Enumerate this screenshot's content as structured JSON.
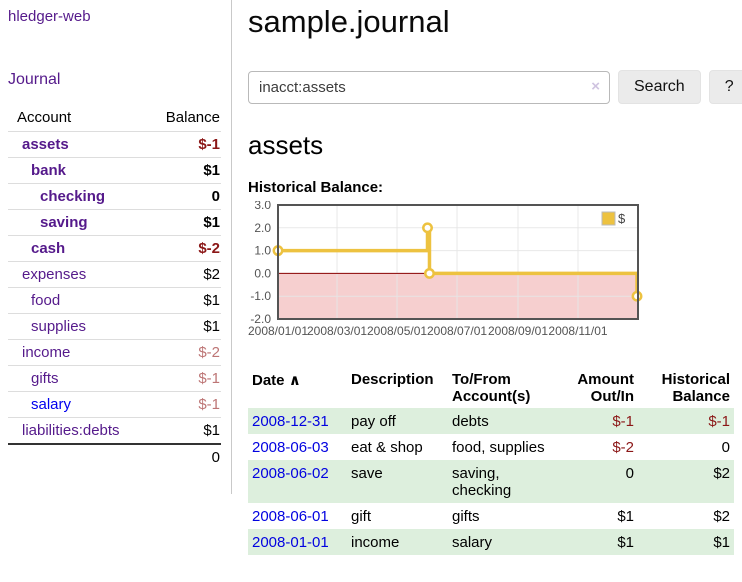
{
  "sidebar": {
    "app_title": "hledger-web",
    "journal_link": "Journal",
    "table": {
      "account_header": "Account",
      "balance_header": "Balance",
      "accounts": [
        {
          "name": "assets",
          "level": 1,
          "name_class": "bold",
          "balance": "$-1",
          "balance_class": "bold neg-strong"
        },
        {
          "name": "bank",
          "level": 2,
          "name_class": "bold",
          "balance": "$1",
          "balance_class": "bold"
        },
        {
          "name": "checking",
          "level": 3,
          "name_class": "bold",
          "balance": "0",
          "balance_class": "bold"
        },
        {
          "name": "saving",
          "level": 3,
          "name_class": "bold",
          "balance": "$1",
          "balance_class": "bold"
        },
        {
          "name": "cash",
          "level": 2,
          "name_class": "bold",
          "balance": "$-2",
          "balance_class": "bold neg-strong"
        },
        {
          "name": "expenses",
          "level": 1,
          "name_class": "",
          "balance": "$2",
          "balance_class": ""
        },
        {
          "name": "food",
          "level": 2,
          "name_class": "",
          "balance": "$1",
          "balance_class": ""
        },
        {
          "name": "supplies",
          "level": 2,
          "name_class": "",
          "balance": "$1",
          "balance_class": ""
        },
        {
          "name": "income",
          "level": 1,
          "name_class": "",
          "balance": "$-2",
          "balance_class": "neg-soft"
        },
        {
          "name": "gifts",
          "level": 2,
          "name_class": "",
          "balance": "$-1",
          "balance_class": "neg-soft"
        },
        {
          "name": "salary",
          "level": 2,
          "name_class": "unvisited",
          "balance": "$-1",
          "balance_class": "neg-soft"
        },
        {
          "name": "liabilities:debts",
          "level": 1,
          "name_class": "",
          "balance": "$1",
          "balance_class": ""
        }
      ],
      "total": "0"
    }
  },
  "main": {
    "title": "sample.journal",
    "search": {
      "value": "inacct:assets",
      "clear_icon": "×",
      "button_label": "Search",
      "help_label": "?"
    },
    "account_heading": "assets",
    "register": {
      "headers": {
        "date": "Date",
        "description": "Description",
        "accounts": "To/From Account(s)",
        "amount": "Amount Out/In",
        "balance": "Historical Balance"
      },
      "sort_indicator": "∧",
      "rows": [
        {
          "date": "2008-12-31",
          "description": "pay off",
          "accounts": "debts",
          "amount": "$-1",
          "amount_class": "negative",
          "balance": "$-1",
          "balance_class": "negative"
        },
        {
          "date": "2008-06-03",
          "description": "eat & shop",
          "accounts": "food, supplies",
          "amount": "$-2",
          "amount_class": "negative",
          "balance": "0",
          "balance_class": ""
        },
        {
          "date": "2008-06-02",
          "description": "save",
          "accounts": "saving, checking",
          "amount": "0",
          "amount_class": "",
          "balance": "$2",
          "balance_class": ""
        },
        {
          "date": "2008-06-01",
          "description": "gift",
          "accounts": "gifts",
          "amount": "$1",
          "amount_class": "",
          "balance": "$2",
          "balance_class": ""
        },
        {
          "date": "2008-01-01",
          "description": "income",
          "accounts": "salary",
          "amount": "$1",
          "amount_class": "",
          "balance": "$1",
          "balance_class": ""
        }
      ]
    }
  },
  "chart_data": {
    "type": "line",
    "title": "Historical Balance:",
    "step": true,
    "series": [
      {
        "name": "$",
        "color": "#edc240",
        "points": [
          {
            "date": "2008-01-01",
            "value": 1
          },
          {
            "date": "2008-06-01",
            "value": 2
          },
          {
            "date": "2008-06-03",
            "value": 0
          },
          {
            "date": "2008-12-31",
            "value": -1
          }
        ]
      }
    ],
    "x_range": [
      "2008-01-01",
      "2008-12-31"
    ],
    "ylim": [
      -2,
      3
    ],
    "y_ticks": [
      "3.0",
      "2.0",
      "1.0",
      "0.0",
      "-1.0",
      "-2.0"
    ],
    "x_ticks": [
      "2008/01/01",
      "2008/03/01",
      "2008/05/01",
      "2008/07/01",
      "2008/09/01",
      "2008/11/01"
    ],
    "legend": {
      "label": "$",
      "position": "top-right"
    },
    "grid": true
  },
  "colors": {
    "link_purple": "#551a8b",
    "link_blue": "#0000ee",
    "negative_dark": "#8b1717",
    "negative_soft": "#bd7575",
    "row_green": "#ddefdd",
    "chart_gold": "#edc240",
    "chart_negative_fill": "#f6cfcf",
    "chart_zero_line": "#8b0000",
    "chart_grid": "#e6e6e6",
    "chart_border": "#545454"
  }
}
